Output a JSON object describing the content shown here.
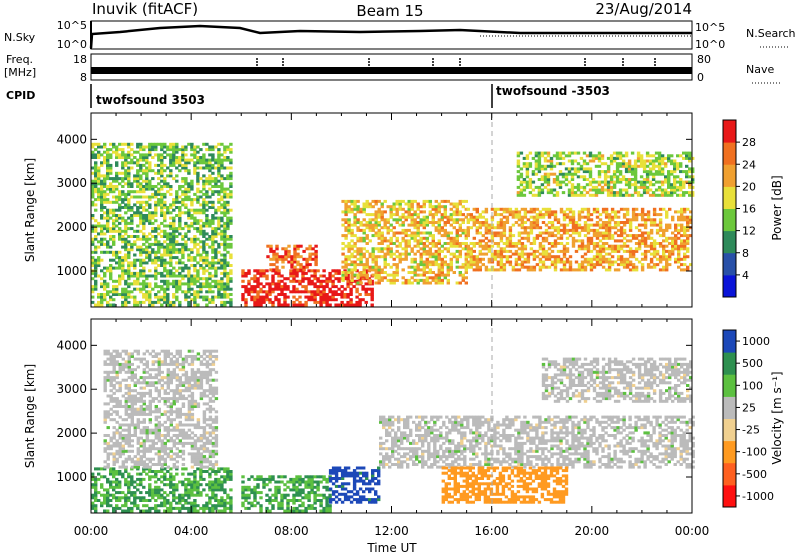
{
  "header": {
    "station": "Inuvik (fitACF)",
    "beam": "Beam 15",
    "date": "23/Aug/2014"
  },
  "top_panels": {
    "nsky_label": "N.Sky",
    "nsky_ticks": [
      "10^5",
      "10^0"
    ],
    "nsearch_label": "N.Search",
    "nsearch_ticks": [
      "10^5",
      "10^0"
    ],
    "freq_label": "Freq.",
    "freq_unit": "[MHz]",
    "freq_ticks": [
      "18",
      "8"
    ],
    "nave_label": "Nave",
    "nave_ticks": [
      "80",
      "0"
    ],
    "cpid_label": "CPID",
    "cpid_segments": [
      "twofsound 3503",
      "twofsound -3503"
    ]
  },
  "colors": {
    "power_scale": [
      "#0a14d8",
      "#2850a8",
      "#2e8a5a",
      "#6cc83c",
      "#e8e03a",
      "#f0a030",
      "#f07020",
      "#e81818"
    ],
    "velocity_scale": [
      "#ff1010",
      "#ff6020",
      "#ff9a20",
      "#f0d090",
      "#bbbbbb",
      "#5cc040",
      "#2e9050",
      "#1c48b8"
    ],
    "ground_scatter": "#bbbbbb"
  },
  "chart_data": [
    {
      "type": "heatmap",
      "name": "power",
      "xlabel": "",
      "ylabel": "Slant Range [km]",
      "x_ticks": [
        "00:00",
        "04:00",
        "08:00",
        "12:00",
        "16:00",
        "20:00",
        "00:00"
      ],
      "y_ticks": [
        "1000",
        "2000",
        "3000",
        "4000"
      ],
      "xlim_hours": [
        0,
        24
      ],
      "ylim_km": [
        180,
        4600
      ],
      "colorbar": {
        "label": "Power [dB]",
        "tick_labels": [
          "4",
          "8",
          "12",
          "16",
          "20",
          "24",
          "28"
        ]
      },
      "echo_bands": [
        {
          "t0": 0.0,
          "t1": 5.6,
          "r0": 200,
          "r1": 3900,
          "power_db": 12
        },
        {
          "t0": 6.0,
          "t1": 11.2,
          "r0": 200,
          "r1": 1000,
          "power_db": 28
        },
        {
          "t0": 7.0,
          "t1": 9.0,
          "r0": 1000,
          "r1": 1600,
          "power_db": 24
        },
        {
          "t0": 10.0,
          "t1": 15.0,
          "r0": 700,
          "r1": 2600,
          "power_db": 18
        },
        {
          "t0": 15.0,
          "t1": 24.0,
          "r0": 1000,
          "r1": 2400,
          "power_db": 20
        },
        {
          "t0": 17.0,
          "t1": 24.0,
          "r0": 2700,
          "r1": 3700,
          "power_db": 14
        }
      ]
    },
    {
      "type": "heatmap",
      "name": "velocity",
      "xlabel": "Time UT",
      "ylabel": "Slant Range [km]",
      "x_ticks": [
        "00:00",
        "04:00",
        "08:00",
        "12:00",
        "16:00",
        "20:00",
        "00:00"
      ],
      "y_ticks": [
        "1000",
        "2000",
        "3000",
        "4000"
      ],
      "xlim_hours": [
        0,
        24
      ],
      "ylim_km": [
        180,
        4600
      ],
      "colorbar": {
        "label": "Velocity [m s⁻¹]",
        "tick_labels": [
          "-1000",
          "-500",
          "-100",
          "-25",
          "25",
          "100",
          "500",
          "1000"
        ]
      },
      "echo_bands": [
        {
          "t0": 0.0,
          "t1": 5.6,
          "r0": 200,
          "r1": 1200,
          "velocity": 100
        },
        {
          "t0": 0.5,
          "t1": 5.0,
          "r0": 1200,
          "r1": 3900,
          "velocity": 0
        },
        {
          "t0": 6.0,
          "t1": 9.5,
          "r0": 200,
          "r1": 1000,
          "velocity": 100
        },
        {
          "t0": 9.5,
          "t1": 11.5,
          "r0": 400,
          "r1": 1200,
          "velocity": 800
        },
        {
          "t0": 11.5,
          "t1": 24.0,
          "r0": 1200,
          "r1": 2400,
          "velocity": 0
        },
        {
          "t0": 14.0,
          "t1": 19.0,
          "r0": 400,
          "r1": 1200,
          "velocity": -300
        },
        {
          "t0": 18.0,
          "t1": 24.0,
          "r0": 2700,
          "r1": 3700,
          "velocity": 0
        }
      ]
    }
  ]
}
